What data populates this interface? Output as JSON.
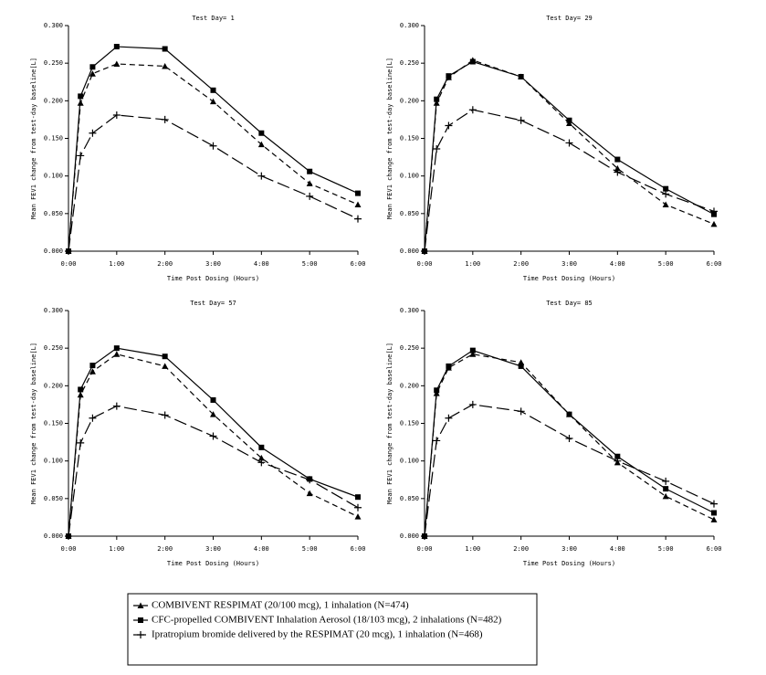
{
  "chart_data": [
    {
      "type": "line",
      "title": "Test Day= 1",
      "x_label": "Time Post Dosing (Hours)",
      "y_label": "Mean FEV1 change from test-day baseline[L]",
      "x": [
        0,
        0.25,
        0.5,
        1,
        2,
        3,
        4,
        5,
        6
      ],
      "series": [
        {
          "values": [
            0,
            0.197,
            0.236,
            0.249,
            0.246,
            0.199,
            0.142,
            0.09,
            0.062
          ]
        },
        {
          "values": [
            0,
            0.206,
            0.245,
            0.272,
            0.269,
            0.214,
            0.157,
            0.106,
            0.077
          ]
        },
        {
          "values": [
            0,
            0.127,
            0.157,
            0.181,
            0.175,
            0.14,
            0.1,
            0.073,
            0.043
          ]
        }
      ],
      "xlim": [
        0,
        6
      ],
      "ylim": [
        0,
        0.3
      ],
      "xticks": [
        {
          "value": 0,
          "label": "0:00"
        },
        {
          "value": 1,
          "label": "1:00"
        },
        {
          "value": 2,
          "label": "2:00"
        },
        {
          "value": 3,
          "label": "3:00"
        },
        {
          "value": 4,
          "label": "4:00"
        },
        {
          "value": 5,
          "label": "5:00"
        },
        {
          "value": 6,
          "label": "6:00"
        }
      ],
      "yticks": [
        {
          "value": 0,
          "label": "0.000"
        },
        {
          "value": 0.05,
          "label": "0.050"
        },
        {
          "value": 0.1,
          "label": "0.100"
        },
        {
          "value": 0.15,
          "label": "0.150"
        },
        {
          "value": 0.2,
          "label": "0.200"
        },
        {
          "value": 0.25,
          "label": "0.250"
        },
        {
          "value": 0.3,
          "label": "0.300"
        }
      ]
    },
    {
      "type": "line",
      "title": "Test Day= 29",
      "x_label": "Time Post Dosing (Hours)",
      "y_label": "Mean FEV1 change from test-day baseline[L]",
      "x": [
        0,
        0.25,
        0.5,
        1,
        2,
        3,
        4,
        5,
        6
      ],
      "series": [
        {
          "values": [
            0,
            0.197,
            0.231,
            0.254,
            0.232,
            0.17,
            0.11,
            0.062,
            0.036
          ]
        },
        {
          "values": [
            0,
            0.202,
            0.233,
            0.252,
            0.232,
            0.174,
            0.122,
            0.083,
            0.049
          ]
        },
        {
          "values": [
            0,
            0.136,
            0.167,
            0.188,
            0.174,
            0.144,
            0.105,
            0.076,
            0.053
          ]
        }
      ],
      "xlim": [
        0,
        6
      ],
      "ylim": [
        0,
        0.3
      ],
      "xticks": [
        {
          "value": 0,
          "label": "0:00"
        },
        {
          "value": 1,
          "label": "1:00"
        },
        {
          "value": 2,
          "label": "2:00"
        },
        {
          "value": 3,
          "label": "3:00"
        },
        {
          "value": 4,
          "label": "4:00"
        },
        {
          "value": 5,
          "label": "5:00"
        },
        {
          "value": 6,
          "label": "6:00"
        }
      ],
      "yticks": [
        {
          "value": 0,
          "label": "0.000"
        },
        {
          "value": 0.05,
          "label": "0.050"
        },
        {
          "value": 0.1,
          "label": "0.100"
        },
        {
          "value": 0.15,
          "label": "0.150"
        },
        {
          "value": 0.2,
          "label": "0.200"
        },
        {
          "value": 0.25,
          "label": "0.250"
        },
        {
          "value": 0.3,
          "label": "0.300"
        }
      ]
    },
    {
      "type": "line",
      "title": "Test Day= 57",
      "x_label": "Time Post Dosing (Hours)",
      "y_label": "Mean FEV1 change from test-day baseline[L]",
      "x": [
        0,
        0.25,
        0.5,
        1,
        2,
        3,
        4,
        5,
        6
      ],
      "series": [
        {
          "values": [
            0,
            0.188,
            0.219,
            0.242,
            0.226,
            0.162,
            0.104,
            0.057,
            0.026
          ]
        },
        {
          "values": [
            0,
            0.195,
            0.227,
            0.25,
            0.239,
            0.181,
            0.118,
            0.076,
            0.052
          ]
        },
        {
          "values": [
            0,
            0.124,
            0.157,
            0.173,
            0.161,
            0.133,
            0.098,
            0.075,
            0.038
          ]
        }
      ],
      "xlim": [
        0,
        6
      ],
      "ylim": [
        0,
        0.3
      ],
      "xticks": [
        {
          "value": 0,
          "label": "0:00"
        },
        {
          "value": 1,
          "label": "1:00"
        },
        {
          "value": 2,
          "label": "2:00"
        },
        {
          "value": 3,
          "label": "3:00"
        },
        {
          "value": 4,
          "label": "4:00"
        },
        {
          "value": 5,
          "label": "5:00"
        },
        {
          "value": 6,
          "label": "6:00"
        }
      ],
      "yticks": [
        {
          "value": 0,
          "label": "0.000"
        },
        {
          "value": 0.05,
          "label": "0.050"
        },
        {
          "value": 0.1,
          "label": "0.100"
        },
        {
          "value": 0.15,
          "label": "0.150"
        },
        {
          "value": 0.2,
          "label": "0.200"
        },
        {
          "value": 0.25,
          "label": "0.250"
        },
        {
          "value": 0.3,
          "label": "0.300"
        }
      ]
    },
    {
      "type": "line",
      "title": "Test Day= 85",
      "x_label": "Time Post Dosing (Hours)",
      "y_label": "Mean FEV1 change from test-day baseline[L]",
      "x": [
        0,
        0.25,
        0.5,
        1,
        2,
        3,
        4,
        5,
        6
      ],
      "series": [
        {
          "values": [
            0,
            0.19,
            0.224,
            0.242,
            0.231,
            0.162,
            0.098,
            0.053,
            0.022
          ]
        },
        {
          "values": [
            0,
            0.194,
            0.226,
            0.247,
            0.226,
            0.162,
            0.106,
            0.063,
            0.031
          ]
        },
        {
          "values": [
            0,
            0.127,
            0.157,
            0.175,
            0.166,
            0.13,
            0.1,
            0.073,
            0.043
          ]
        }
      ],
      "xlim": [
        0,
        6
      ],
      "ylim": [
        0,
        0.3
      ],
      "xticks": [
        {
          "value": 0,
          "label": "0:00"
        },
        {
          "value": 1,
          "label": "1:00"
        },
        {
          "value": 2,
          "label": "2:00"
        },
        {
          "value": 3,
          "label": "3:00"
        },
        {
          "value": 4,
          "label": "4:00"
        },
        {
          "value": 5,
          "label": "5:00"
        },
        {
          "value": 6,
          "label": "6:00"
        }
      ],
      "yticks": [
        {
          "value": 0,
          "label": "0.000"
        },
        {
          "value": 0.05,
          "label": "0.050"
        },
        {
          "value": 0.1,
          "label": "0.100"
        },
        {
          "value": 0.15,
          "label": "0.150"
        },
        {
          "value": 0.2,
          "label": "0.200"
        },
        {
          "value": 0.25,
          "label": "0.250"
        },
        {
          "value": 0.3,
          "label": "0.300"
        }
      ]
    }
  ],
  "legend": {
    "entries": [
      {
        "name": "COMBIVENT RESPIMAT (20/100 mcg), 1 inhalation (N=474)",
        "color": "#000000",
        "marker": "triangle",
        "dash": "6 4"
      },
      {
        "name": "CFC-propelled COMBIVENT Inhalation Aerosol (18/103 mcg), 2 inhalations (N=482)",
        "color": "#000000",
        "marker": "square",
        "dash": "none"
      },
      {
        "name": "Ipratropium bromide delivered by the RESPIMAT (20 mcg), 1 inhalation (N=468)",
        "color": "#000000",
        "marker": "plus",
        "dash": "14 5"
      }
    ]
  }
}
